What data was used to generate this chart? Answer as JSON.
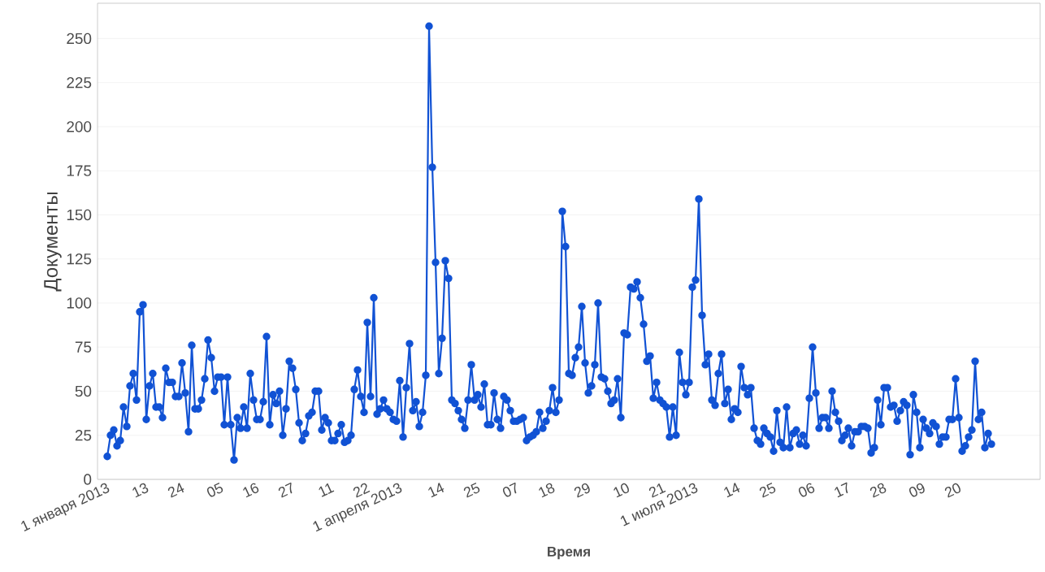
{
  "chart_data": {
    "type": "line",
    "xlabel": "Время",
    "ylabel": "Документы",
    "x": [
      "2013-01-01",
      "2013-01-02",
      "2013-01-03",
      "2013-01-04",
      "2013-01-05",
      "2013-01-06",
      "2013-01-07",
      "2013-01-08",
      "2013-01-09",
      "2013-01-10",
      "2013-01-11",
      "2013-01-12",
      "2013-01-13",
      "2013-01-14",
      "2013-01-15",
      "2013-01-16",
      "2013-01-17",
      "2013-01-18",
      "2013-01-19",
      "2013-01-20",
      "2013-01-21",
      "2013-01-22",
      "2013-01-23",
      "2013-01-24",
      "2013-01-25",
      "2013-01-26",
      "2013-01-27",
      "2013-01-28",
      "2013-01-29",
      "2013-01-30",
      "2013-01-31",
      "2013-02-01",
      "2013-02-02",
      "2013-02-03",
      "2013-02-04",
      "2013-02-05",
      "2013-02-06",
      "2013-02-07",
      "2013-02-08",
      "2013-02-09",
      "2013-02-10",
      "2013-02-11",
      "2013-02-12",
      "2013-02-13",
      "2013-02-14",
      "2013-02-15",
      "2013-02-16",
      "2013-02-17",
      "2013-02-18",
      "2013-02-19",
      "2013-02-20",
      "2013-02-21",
      "2013-02-22",
      "2013-02-23",
      "2013-02-24",
      "2013-02-25",
      "2013-02-26",
      "2013-02-27",
      "2013-02-28",
      "2013-03-01",
      "2013-03-02",
      "2013-03-03",
      "2013-03-04",
      "2013-03-05",
      "2013-03-06",
      "2013-03-07",
      "2013-03-08",
      "2013-03-09",
      "2013-03-10",
      "2013-03-11",
      "2013-03-12",
      "2013-03-13",
      "2013-03-14",
      "2013-03-15",
      "2013-03-16",
      "2013-03-17",
      "2013-03-18",
      "2013-03-19",
      "2013-03-20",
      "2013-03-21",
      "2013-03-22",
      "2013-03-23",
      "2013-03-24",
      "2013-03-25",
      "2013-03-26",
      "2013-03-27",
      "2013-03-28",
      "2013-03-29",
      "2013-03-30",
      "2013-03-31",
      "2013-04-01",
      "2013-04-02",
      "2013-04-03",
      "2013-04-04",
      "2013-04-05",
      "2013-04-06",
      "2013-04-07",
      "2013-04-08",
      "2013-04-09",
      "2013-04-10",
      "2013-04-11",
      "2013-04-12",
      "2013-04-13",
      "2013-04-14",
      "2013-04-15",
      "2013-04-16",
      "2013-04-17",
      "2013-04-18",
      "2013-04-19",
      "2013-04-20",
      "2013-04-21",
      "2013-04-22",
      "2013-04-23",
      "2013-04-24",
      "2013-04-25",
      "2013-04-26",
      "2013-04-27",
      "2013-04-28",
      "2013-04-29",
      "2013-04-30",
      "2013-05-01",
      "2013-05-02",
      "2013-05-03",
      "2013-05-04",
      "2013-05-05",
      "2013-05-06",
      "2013-05-07",
      "2013-05-08",
      "2013-05-09",
      "2013-05-10",
      "2013-05-11",
      "2013-05-12",
      "2013-05-13",
      "2013-05-14",
      "2013-05-15",
      "2013-05-16",
      "2013-05-17",
      "2013-05-18",
      "2013-05-19",
      "2013-05-20",
      "2013-05-21",
      "2013-05-22",
      "2013-05-23",
      "2013-05-24",
      "2013-05-25",
      "2013-05-26",
      "2013-05-27",
      "2013-05-28",
      "2013-05-29",
      "2013-05-30",
      "2013-05-31",
      "2013-06-01",
      "2013-06-02",
      "2013-06-03",
      "2013-06-04",
      "2013-06-05",
      "2013-06-06",
      "2013-06-07",
      "2013-06-08",
      "2013-06-09",
      "2013-06-10",
      "2013-06-11",
      "2013-06-12",
      "2013-06-13",
      "2013-06-14",
      "2013-06-15",
      "2013-06-16",
      "2013-06-17",
      "2013-06-18",
      "2013-06-19",
      "2013-06-20",
      "2013-06-21",
      "2013-06-22",
      "2013-06-23",
      "2013-06-24",
      "2013-06-25",
      "2013-06-26",
      "2013-06-27",
      "2013-06-28",
      "2013-06-29",
      "2013-06-30",
      "2013-07-01",
      "2013-07-02",
      "2013-07-03",
      "2013-07-04",
      "2013-07-05",
      "2013-07-06",
      "2013-07-07",
      "2013-07-08",
      "2013-07-09",
      "2013-07-10",
      "2013-07-11",
      "2013-07-12",
      "2013-07-13",
      "2013-07-14",
      "2013-07-15",
      "2013-07-16",
      "2013-07-17",
      "2013-07-18",
      "2013-07-19",
      "2013-07-20",
      "2013-07-21",
      "2013-07-22",
      "2013-07-23",
      "2013-07-24",
      "2013-07-25",
      "2013-07-26",
      "2013-07-27",
      "2013-07-28",
      "2013-07-29",
      "2013-07-30",
      "2013-07-31",
      "2013-08-01",
      "2013-08-02",
      "2013-08-03",
      "2013-08-04",
      "2013-08-05",
      "2013-08-06",
      "2013-08-07",
      "2013-08-08",
      "2013-08-09",
      "2013-08-10",
      "2013-08-11",
      "2013-08-12",
      "2013-08-13",
      "2013-08-14",
      "2013-08-15",
      "2013-08-16",
      "2013-08-17",
      "2013-08-18",
      "2013-08-19",
      "2013-08-20",
      "2013-08-21",
      "2013-08-22",
      "2013-08-23",
      "2013-08-24",
      "2013-08-25",
      "2013-08-26",
      "2013-08-27",
      "2013-08-28",
      "2013-08-29",
      "2013-08-30",
      "2013-08-31",
      "2013-09-01",
      "2013-09-02",
      "2013-09-03",
      "2013-09-04",
      "2013-09-05",
      "2013-09-06",
      "2013-09-07",
      "2013-09-08",
      "2013-09-09",
      "2013-09-10",
      "2013-09-11",
      "2013-09-12",
      "2013-09-13",
      "2013-09-14",
      "2013-09-15",
      "2013-09-16",
      "2013-09-17",
      "2013-09-18",
      "2013-09-19",
      "2013-09-20",
      "2013-09-21",
      "2013-09-22",
      "2013-09-23",
      "2013-09-24",
      "2013-09-25",
      "2013-09-26",
      "2013-09-27",
      "2013-09-28",
      "2013-09-29",
      "2013-09-30"
    ],
    "values": [
      13,
      25,
      28,
      19,
      22,
      41,
      30,
      53,
      60,
      45,
      95,
      99,
      34,
      53,
      60,
      41,
      41,
      35,
      63,
      55,
      55,
      47,
      47,
      66,
      49,
      27,
      76,
      40,
      40,
      45,
      57,
      79,
      69,
      50,
      58,
      58,
      31,
      58,
      31,
      11,
      35,
      29,
      41,
      29,
      60,
      45,
      34,
      34,
      44,
      81,
      31,
      48,
      43,
      50,
      25,
      40,
      67,
      63,
      51,
      32,
      22,
      26,
      36,
      38,
      50,
      50,
      28,
      35,
      32,
      22,
      22,
      26,
      31,
      21,
      22,
      25,
      51,
      62,
      47,
      38,
      89,
      47,
      103,
      37,
      40,
      45,
      40,
      38,
      34,
      33,
      56,
      24,
      52,
      77,
      39,
      44,
      30,
      38,
      59,
      257,
      177,
      123,
      60,
      80,
      124,
      114,
      45,
      43,
      39,
      34,
      29,
      45,
      65,
      45,
      48,
      41,
      54,
      31,
      31,
      49,
      34,
      29,
      47,
      45,
      39,
      33,
      33,
      34,
      35,
      22,
      24,
      25,
      27,
      38,
      29,
      33,
      39,
      52,
      38,
      45,
      152,
      132,
      60,
      59,
      69,
      75,
      98,
      66,
      49,
      53,
      65,
      100,
      58,
      57,
      50,
      43,
      45,
      57,
      35,
      83,
      82,
      109,
      108,
      112,
      103,
      88,
      67,
      70,
      46,
      55,
      45,
      43,
      41,
      24,
      41,
      25,
      72,
      55,
      48,
      55,
      109,
      113,
      159,
      93,
      65,
      71,
      45,
      42,
      60,
      71,
      43,
      51,
      34,
      40,
      38,
      64,
      52,
      48,
      52,
      29,
      22,
      20,
      29,
      26,
      24,
      16,
      39,
      21,
      18,
      41,
      18,
      26,
      28,
      20,
      25,
      19,
      46,
      75,
      49,
      29,
      35,
      35,
      29,
      50,
      38,
      33,
      22,
      25,
      29,
      19,
      27,
      27,
      30,
      30,
      29,
      15,
      18,
      45,
      31,
      52,
      52,
      41,
      42,
      33,
      39,
      44,
      42,
      14,
      48,
      38,
      18,
      34,
      29,
      26,
      32,
      30,
      20,
      24,
      24,
      34,
      34,
      57,
      35,
      16,
      19,
      24,
      28,
      67,
      34,
      38,
      18,
      26,
      20
    ],
    "color": "#1152d4",
    "marker": "circle",
    "line_style": "solid",
    "grid": "y",
    "xlim": [
      "2012-12-29",
      "2013-10-15"
    ],
    "ylim": [
      0,
      270
    ],
    "xticks": [
      {
        "value": "2013-01-01",
        "label": "1 января 2013"
      },
      {
        "value": "2013-01-13",
        "label": "13"
      },
      {
        "value": "2013-01-24",
        "label": "24"
      },
      {
        "value": "2013-02-05",
        "label": "05"
      },
      {
        "value": "2013-02-16",
        "label": "16"
      },
      {
        "value": "2013-02-27",
        "label": "27"
      },
      {
        "value": "2013-03-11",
        "label": "11"
      },
      {
        "value": "2013-03-22",
        "label": "22"
      },
      {
        "value": "2013-04-01",
        "label": "1 апреля 2013"
      },
      {
        "value": "2013-04-14",
        "label": "14"
      },
      {
        "value": "2013-04-25",
        "label": "25"
      },
      {
        "value": "2013-05-07",
        "label": "07"
      },
      {
        "value": "2013-05-18",
        "label": "18"
      },
      {
        "value": "2013-05-29",
        "label": "29"
      },
      {
        "value": "2013-06-10",
        "label": "10"
      },
      {
        "value": "2013-06-21",
        "label": "21"
      },
      {
        "value": "2013-07-01",
        "label": "1 июля 2013"
      },
      {
        "value": "2013-07-14",
        "label": "14"
      },
      {
        "value": "2013-07-25",
        "label": "25"
      },
      {
        "value": "2013-08-06",
        "label": "06"
      },
      {
        "value": "2013-08-17",
        "label": "17"
      },
      {
        "value": "2013-08-28",
        "label": "28"
      },
      {
        "value": "2013-09-09",
        "label": "09"
      },
      {
        "value": "2013-09-20",
        "label": "20"
      }
    ],
    "yticks": [
      0,
      25,
      50,
      75,
      100,
      125,
      150,
      175,
      200,
      225,
      250
    ]
  }
}
